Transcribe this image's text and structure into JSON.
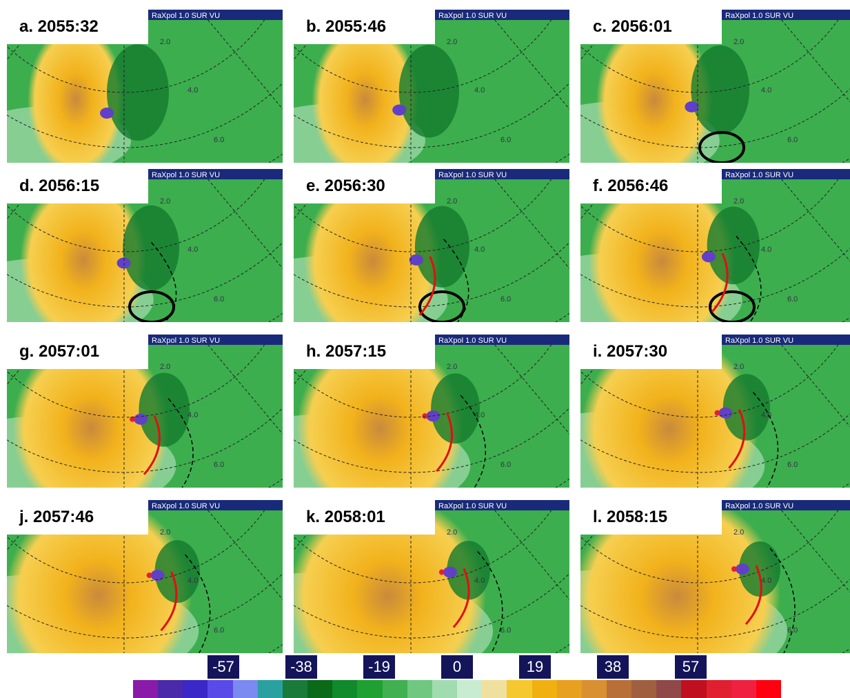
{
  "panels": [
    {
      "label": "a. 2055:32"
    },
    {
      "label": "b. 2055:46"
    },
    {
      "label": "c. 2056:01"
    },
    {
      "label": "d. 2056:15"
    },
    {
      "label": "e. 2056:30"
    },
    {
      "label": "f. 2056:46"
    },
    {
      "label": "g. 2057:01"
    },
    {
      "label": "h. 2057:15"
    },
    {
      "label": "i. 2057:30"
    },
    {
      "label": "j. 2057:46"
    },
    {
      "label": "k. 2058:01"
    },
    {
      "label": "l. 2058:15"
    }
  ],
  "radar_label": "RaXpol 1.0 SUR VU",
  "range_labels": [
    "2.0",
    "4.0",
    "6.0"
  ],
  "colorbar": {
    "ticks": [
      "-57",
      "-38",
      "-19",
      "0",
      "19",
      "38",
      "57"
    ]
  }
}
